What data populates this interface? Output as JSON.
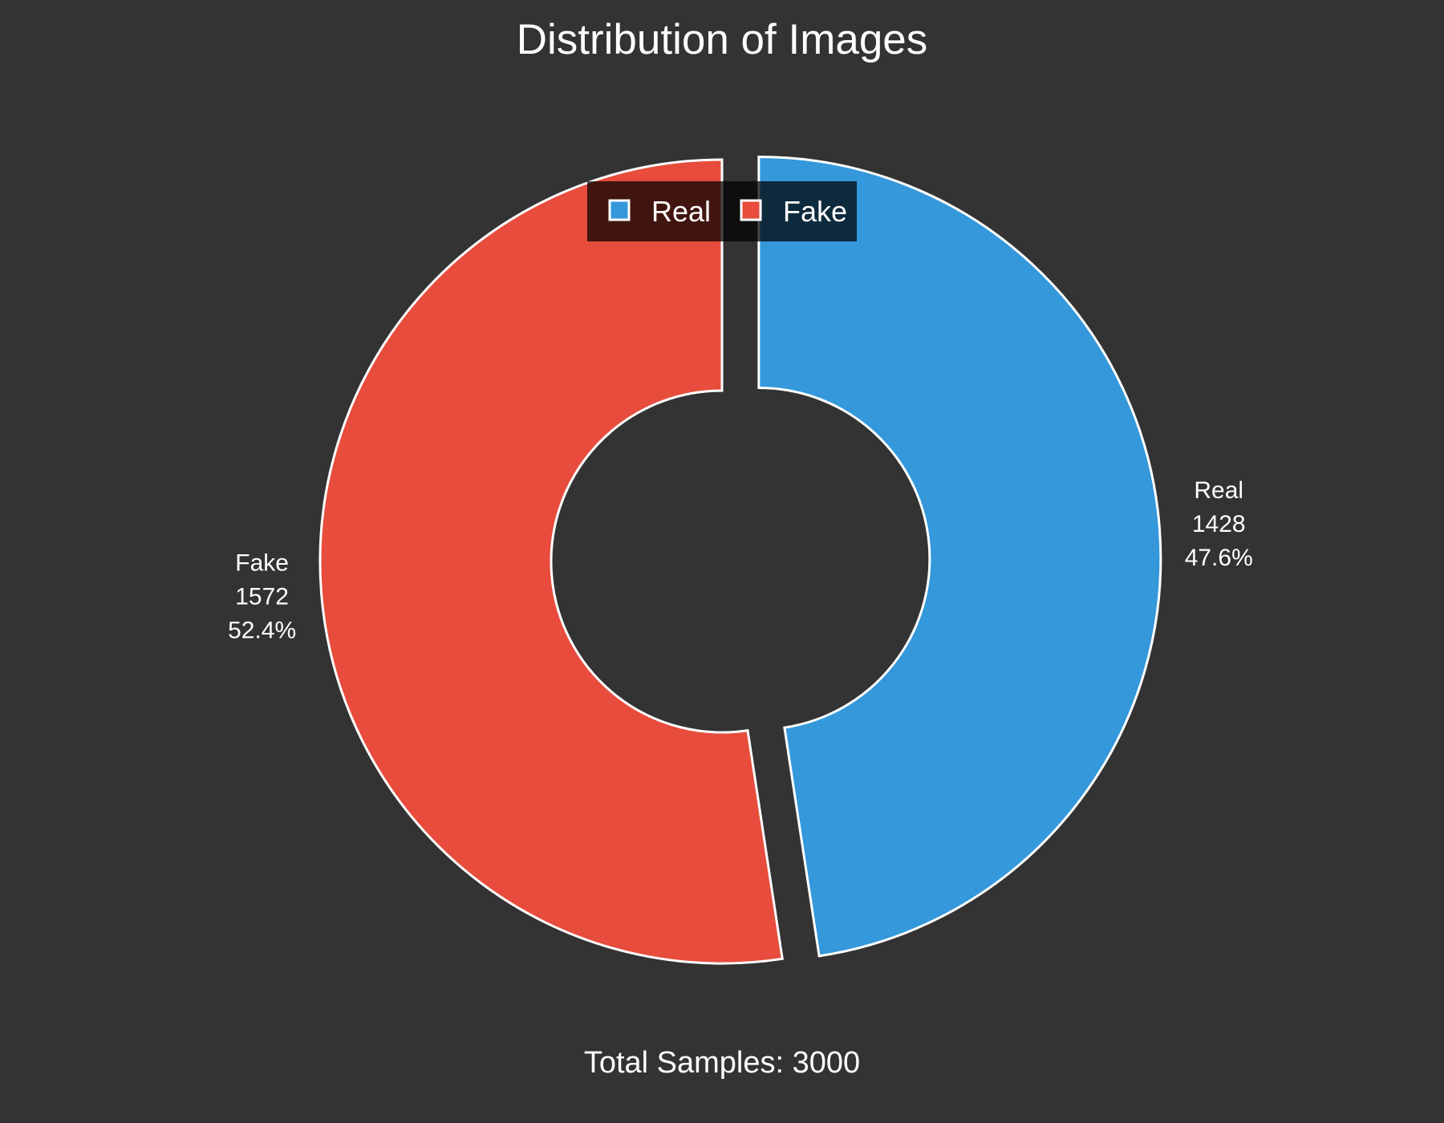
{
  "chart_data": {
    "type": "pie",
    "style": "donut",
    "title": "Distribution of Images",
    "categories": [
      "Real",
      "Fake"
    ],
    "values": [
      1428,
      1572
    ],
    "percentages": [
      "47.6%",
      "52.4%"
    ],
    "colors": [
      "#3498db",
      "#e74c3c"
    ],
    "exploded": [
      "Real"
    ],
    "legend": {
      "placement": "top-center",
      "entries": [
        "Real",
        "Fake"
      ]
    },
    "total_label": "Total Samples: 3000",
    "background": "#333333",
    "edge_color": "#ffffff"
  }
}
